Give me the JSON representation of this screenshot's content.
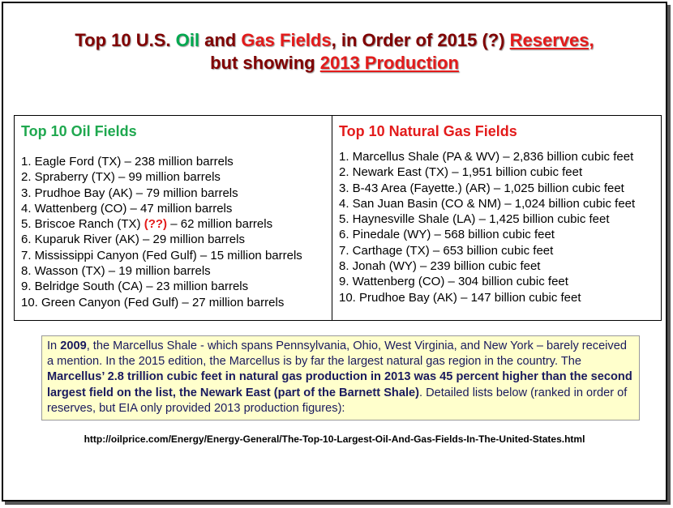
{
  "title": {
    "l1_a": "Top 10 U.S. ",
    "l1_oil": "Oil",
    "l1_and": " and ",
    "l1_gas": "Gas Fields",
    "l1_b": ", in Order of 2015 (?) ",
    "l1_reserves": "Reserves,",
    "l2_a": "but showing ",
    "l2_prod": "2013 Production"
  },
  "oil": {
    "heading": "Top 10 Oil Fields",
    "item1": "1. Eagle Ford (TX) – 238 million barrels",
    "item2": "2. Spraberry (TX) – 99 million barrels",
    "item3": "3. Prudhoe Bay (AK) – 79 million barrels",
    "item4": "4. Wattenberg (CO) – 47 million barrels",
    "item5_a": "5. Briscoe Ranch (TX) ",
    "item5_q": "(??)",
    "item5_b": " – 62 million barrels",
    "item6": "6. Kuparuk River (AK) – 29 million barrels",
    "item7": "7. Mississippi Canyon (Fed Gulf) – 15 million barrels",
    "item8": "8. Wasson (TX) – 19 million barrels",
    "item9": "9. Belridge South (CA) – 23 million barrels",
    "item10": "10. Green Canyon (Fed Gulf) – 27 million barrels"
  },
  "gas": {
    "heading": "Top 10 Natural Gas Fields",
    "items": [
      "1. Marcellus Shale (PA & WV) – 2,836 billion cubic feet",
      "2. Newark East (TX) – 1,951 billion cubic feet",
      "3. B-43 Area (Fayette.) (AR) – 1,025 billion cubic feet",
      "4. San Juan Basin (CO & NM) – 1,024 billion cubic feet",
      "5. Haynesville Shale (LA) – 1,425 billion cubic feet",
      "6. Pinedale (WY) – 568 billion cubic feet",
      "7. Carthage (TX) – 653 billion cubic feet",
      "8. Jonah (WY) – 239 billion cubic feet",
      "9. Wattenberg (CO) – 304 billion cubic feet",
      "10. Prudhoe Bay (AK) – 147 billion cubic feet"
    ]
  },
  "note": {
    "p1": "In ",
    "year": "2009",
    "p2": ", the Marcellus Shale - which spans Pennsylvania, Ohio, West Virginia, and New York – barely received a mention. In the 2015 edition, the Marcellus is by far the largest natural gas region in the country. The ",
    "bold": "Marcellus’ 2.8 trillion cubic feet in natural gas production in 2013 was 45 percent higher than the second largest field on the list, the Newark East (part of the Barnett Shale)",
    "p3": ". Detailed lists below (ranked in order of reserves, but EIA only provided 2013 production figures):"
  },
  "url": "http://oilprice.com/Energy/Energy-General/The-Top-10-Largest-Oil-And-Gas-Fields-In-The-United-States.html"
}
